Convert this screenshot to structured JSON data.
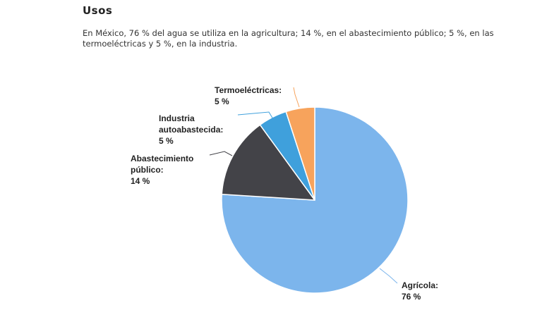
{
  "section": {
    "heading": "Usos",
    "intro": "En México, 76 % del agua se utiliza en la agricultura; 14 %, en el abastecimiento público; 5 %, en las termoeléctricas y 5 %, en la industria."
  },
  "chart_data": {
    "type": "pie",
    "title": "",
    "slices": [
      {
        "name": "Agrícola",
        "value": 76,
        "value_label": "76 %",
        "color": "#7cb5ec"
      },
      {
        "name": "Abastecimiento público",
        "value": 14,
        "value_label": "14 %",
        "color": "#434348"
      },
      {
        "name": "Industria autoabastecida",
        "value": 5,
        "value_label": "5 %",
        "color": "#3fa0dc"
      },
      {
        "name": "Termoeléctricas",
        "value": 5,
        "value_label": "5 %",
        "color": "#f7a35c"
      }
    ],
    "data_labels": [
      {
        "lines": [
          "Agrícola:",
          "76 %"
        ]
      },
      {
        "lines": [
          "Abastecimiento",
          "público:",
          "14 %"
        ]
      },
      {
        "lines": [
          "Industria",
          "autoabastecida:",
          "5 %"
        ]
      },
      {
        "lines": [
          "Termoeléctricas:",
          "5 %"
        ]
      }
    ]
  }
}
